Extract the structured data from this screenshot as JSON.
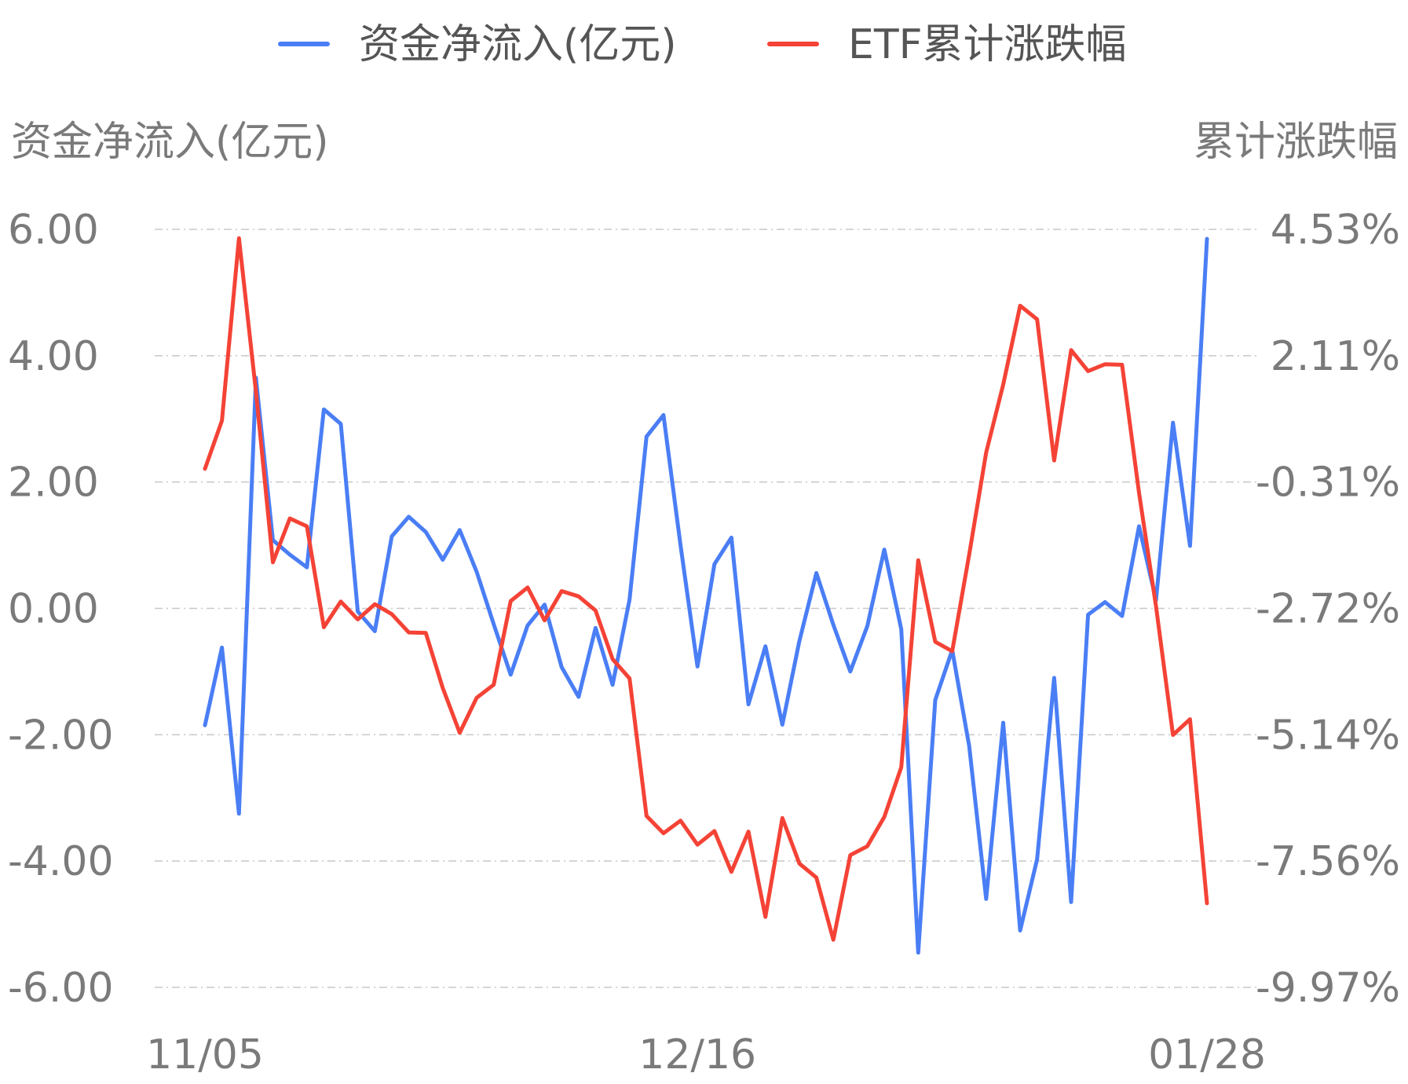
{
  "chart_data": {
    "type": "line",
    "legend_position": "top-center",
    "grid": true,
    "y_left": {
      "title": "资金净流入(亿元)",
      "ticks": [
        "6.00",
        "4.00",
        "2.00",
        "0.00",
        "-2.00",
        "-4.00",
        "-6.00"
      ],
      "range": [
        -6,
        6
      ]
    },
    "y_right": {
      "title": "累计涨跌幅",
      "ticks": [
        "4.53%",
        "2.11%",
        "-0.31%",
        "-2.72%",
        "-5.14%",
        "-7.56%",
        "-9.97%"
      ],
      "range": [
        -9.97,
        4.53
      ]
    },
    "x_ticks": [
      {
        "index": 0,
        "label": "11/05"
      },
      {
        "index": 29,
        "label": "12/16"
      },
      {
        "index": 59,
        "label": "01/28"
      }
    ],
    "series": [
      {
        "name": "资金净流入(亿元)",
        "axis": "left",
        "color": "#4a7ef5",
        "values": [
          -1.85,
          -0.62,
          -3.25,
          3.65,
          1.08,
          0.85,
          0.65,
          3.15,
          2.92,
          -0.05,
          -0.36,
          1.14,
          1.45,
          1.21,
          0.77,
          1.24,
          0.58,
          -0.25,
          -1.05,
          -0.27,
          0.06,
          -0.93,
          -1.4,
          -0.31,
          -1.21,
          0.14,
          2.72,
          3.06,
          1.0,
          -0.92,
          0.7,
          1.12,
          -1.52,
          -0.6,
          -1.84,
          -0.52,
          0.56,
          -0.26,
          -1.0,
          -0.28,
          0.93,
          -0.33,
          -5.45,
          -1.45,
          -0.66,
          -2.18,
          -4.6,
          -1.81,
          -5.1,
          -3.97,
          -1.1,
          -4.65,
          -0.1,
          0.1,
          -0.12,
          1.3,
          0.13,
          2.94,
          0.99,
          5.85
        ]
      },
      {
        "name": "ETF累计涨跌幅",
        "axis": "right",
        "color": "#f44336",
        "values": [
          -0.05,
          0.87,
          4.36,
          1.43,
          -1.84,
          -1.0,
          -1.15,
          -3.08,
          -2.59,
          -2.93,
          -2.64,
          -2.83,
          -3.18,
          -3.19,
          -4.24,
          -5.1,
          -4.43,
          -4.18,
          -2.58,
          -2.32,
          -2.95,
          -2.39,
          -2.49,
          -2.76,
          -3.69,
          -4.06,
          -6.69,
          -7.02,
          -6.78,
          -7.24,
          -6.98,
          -7.76,
          -6.99,
          -8.62,
          -6.73,
          -7.6,
          -7.87,
          -9.06,
          -7.44,
          -7.27,
          -6.71,
          -5.76,
          -1.8,
          -3.36,
          -3.54,
          -1.69,
          0.26,
          1.56,
          3.07,
          2.81,
          0.11,
          2.22,
          1.82,
          1.95,
          1.94,
          -0.51,
          -2.68,
          -5.14,
          -4.84,
          -8.36
        ]
      }
    ]
  }
}
